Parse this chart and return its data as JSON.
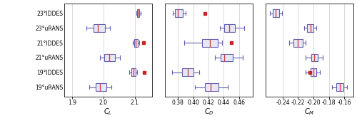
{
  "ylabels": [
    "23°IDDES",
    "23°uRANS",
    "21°IDDES",
    "21°uRANS",
    "19°IDDES",
    "19°uRANS"
  ],
  "CL": {
    "xlabel": "$C_L$",
    "xlim": [
      1.875,
      2.155
    ],
    "xticks": [
      1.9,
      2.0,
      2.1
    ],
    "boxes": [
      {
        "whislo": 2.105,
        "q1": 2.107,
        "med": 2.11,
        "q3": 2.115,
        "whishi": 2.118,
        "fliers": []
      },
      {
        "whislo": 1.945,
        "q1": 1.968,
        "med": 1.983,
        "q3": 2.005,
        "whishi": 2.022,
        "fliers": []
      },
      {
        "whislo": 2.095,
        "q1": 2.098,
        "med": 2.103,
        "q3": 2.11,
        "whishi": 2.115,
        "fliers": [
          2.128
        ]
      },
      {
        "whislo": 1.99,
        "q1": 2.002,
        "med": 2.018,
        "q3": 2.038,
        "whishi": 2.052,
        "fliers": []
      },
      {
        "whislo": 2.083,
        "q1": 2.09,
        "med": 2.096,
        "q3": 2.103,
        "whishi": 2.108,
        "fliers": [
          2.13
        ]
      },
      {
        "whislo": 1.955,
        "q1": 1.975,
        "med": 1.99,
        "q3": 2.01,
        "whishi": 2.025,
        "fliers": []
      }
    ]
  },
  "CD": {
    "xlabel": "$C_D$",
    "xlim": [
      0.363,
      0.478
    ],
    "xticks": [
      0.38,
      0.4,
      0.42,
      0.44,
      0.46
    ],
    "boxes": [
      {
        "whislo": 0.373,
        "q1": 0.376,
        "med": 0.38,
        "q3": 0.386,
        "whishi": 0.39,
        "fliers": [
          0.415
        ]
      },
      {
        "whislo": 0.435,
        "q1": 0.441,
        "med": 0.447,
        "q3": 0.455,
        "whishi": 0.467,
        "fliers": []
      },
      {
        "whislo": 0.388,
        "q1": 0.412,
        "med": 0.422,
        "q3": 0.432,
        "whishi": 0.438,
        "fliers": [
          0.45
        ]
      },
      {
        "whislo": 0.428,
        "q1": 0.436,
        "med": 0.441,
        "q3": 0.452,
        "whishi": 0.465,
        "fliers": []
      },
      {
        "whislo": 0.372,
        "q1": 0.385,
        "med": 0.393,
        "q3": 0.4,
        "whishi": 0.408,
        "fliers": []
      },
      {
        "whislo": 0.402,
        "q1": 0.415,
        "med": 0.423,
        "q3": 0.433,
        "whishi": 0.445,
        "fliers": []
      }
    ]
  },
  "CM": {
    "xlabel": "$C_M$",
    "xlim": [
      -0.262,
      -0.148
    ],
    "xticks": [
      -0.24,
      -0.22,
      -0.2,
      -0.18,
      -0.16
    ],
    "boxes": [
      {
        "whislo": -0.257,
        "q1": -0.253,
        "med": -0.249,
        "q3": -0.245,
        "whishi": -0.241,
        "fliers": []
      },
      {
        "whislo": -0.212,
        "q1": -0.208,
        "med": -0.204,
        "q3": -0.2,
        "whishi": -0.196,
        "fliers": []
      },
      {
        "whislo": -0.232,
        "q1": -0.226,
        "med": -0.22,
        "q3": -0.214,
        "whishi": -0.21,
        "fliers": []
      },
      {
        "whislo": -0.21,
        "q1": -0.203,
        "med": -0.199,
        "q3": -0.194,
        "whishi": -0.188,
        "fliers": []
      },
      {
        "whislo": -0.21,
        "q1": -0.204,
        "med": -0.2,
        "q3": -0.196,
        "whishi": -0.192,
        "fliers": [
          -0.205
        ]
      },
      {
        "whislo": -0.176,
        "q1": -0.17,
        "med": -0.166,
        "q3": -0.161,
        "whishi": -0.156,
        "fliers": []
      }
    ]
  },
  "box_facecolor": "#e8e8f5",
  "box_edgecolor": "#6060b0",
  "median_color": "#cc4444",
  "flier_color": "#cc2222",
  "whisker_color": "#6060b0",
  "cap_color": "#6060b0",
  "grid_color": "#cccccc",
  "bg_color": "#ffffff"
}
